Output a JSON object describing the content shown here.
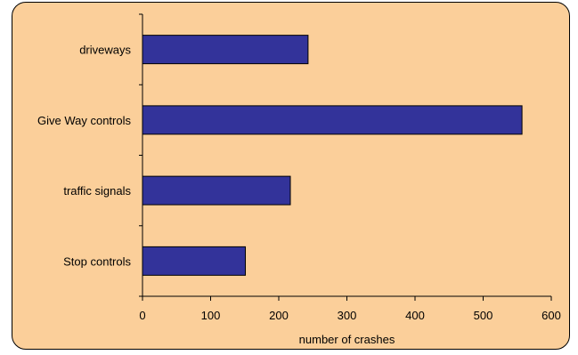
{
  "chart_data": {
    "type": "bar",
    "orientation": "horizontal",
    "categories": [
      "driveways",
      "Give Way controls",
      "traffic signals",
      "Stop controls"
    ],
    "values": [
      243,
      557,
      217,
      151
    ],
    "xlabel": "number of crashes",
    "ylabel": "",
    "xlim": [
      0,
      600
    ],
    "xticks": [
      0,
      100,
      200,
      300,
      400,
      500,
      600
    ],
    "grid": false,
    "legend": "none",
    "colors": {
      "bar_fill": "#33339a",
      "bar_stroke": "#000000",
      "background": "#fbcf9a",
      "border": "#000000"
    }
  }
}
